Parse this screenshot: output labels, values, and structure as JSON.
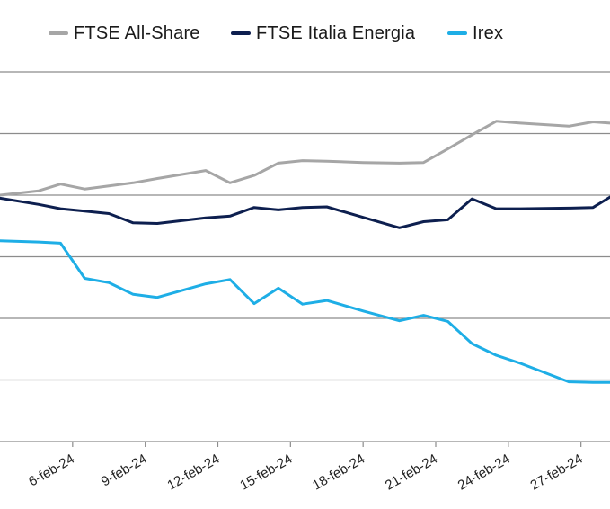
{
  "chart_data": {
    "type": "line",
    "title": "",
    "xlabel": "",
    "ylabel": "",
    "grid": true,
    "legend_position": "top",
    "x_tick_labels": [
      "6-feb-24",
      "9-feb-24",
      "12-feb-24",
      "15-feb-24",
      "18-feb-24",
      "21-feb-24",
      "24-feb-24",
      "27-feb-24"
    ],
    "x_domain": [
      3,
      28.2
    ],
    "y_domain": [
      0,
      6
    ],
    "x": [
      3,
      4.6,
      5.5,
      6.5,
      7.5,
      8.5,
      9.5,
      11.5,
      12.5,
      13.5,
      14.5,
      15.5,
      16.5,
      18,
      19.5,
      20.5,
      21.5,
      22.5,
      23.5,
      24.5,
      26.5,
      27.5,
      28.2
    ],
    "series": [
      {
        "name": "FTSE All-Share",
        "color": "#a6a6a6",
        "values": [
          4.0,
          4.07,
          4.18,
          4.1,
          4.15,
          4.2,
          4.27,
          4.4,
          4.2,
          4.32,
          4.52,
          4.56,
          4.55,
          4.53,
          4.52,
          4.53,
          4.75,
          4.98,
          5.2,
          5.17,
          5.12,
          5.19,
          5.17
        ]
      },
      {
        "name": "FTSE Italia Energia",
        "color": "#0d1f4f",
        "values": [
          3.95,
          3.85,
          3.78,
          3.74,
          3.7,
          3.55,
          3.54,
          3.63,
          3.66,
          3.8,
          3.76,
          3.8,
          3.81,
          3.64,
          3.47,
          3.57,
          3.6,
          3.94,
          3.78,
          3.78,
          3.79,
          3.8,
          3.97
        ]
      },
      {
        "name": "Irex",
        "color": "#1eaee6",
        "values": [
          3.26,
          3.24,
          3.22,
          2.65,
          2.58,
          2.39,
          2.34,
          2.56,
          2.63,
          2.24,
          2.49,
          2.23,
          2.29,
          2.12,
          1.96,
          2.05,
          1.95,
          1.59,
          1.4,
          1.27,
          0.97,
          0.96,
          0.96
        ]
      }
    ]
  }
}
